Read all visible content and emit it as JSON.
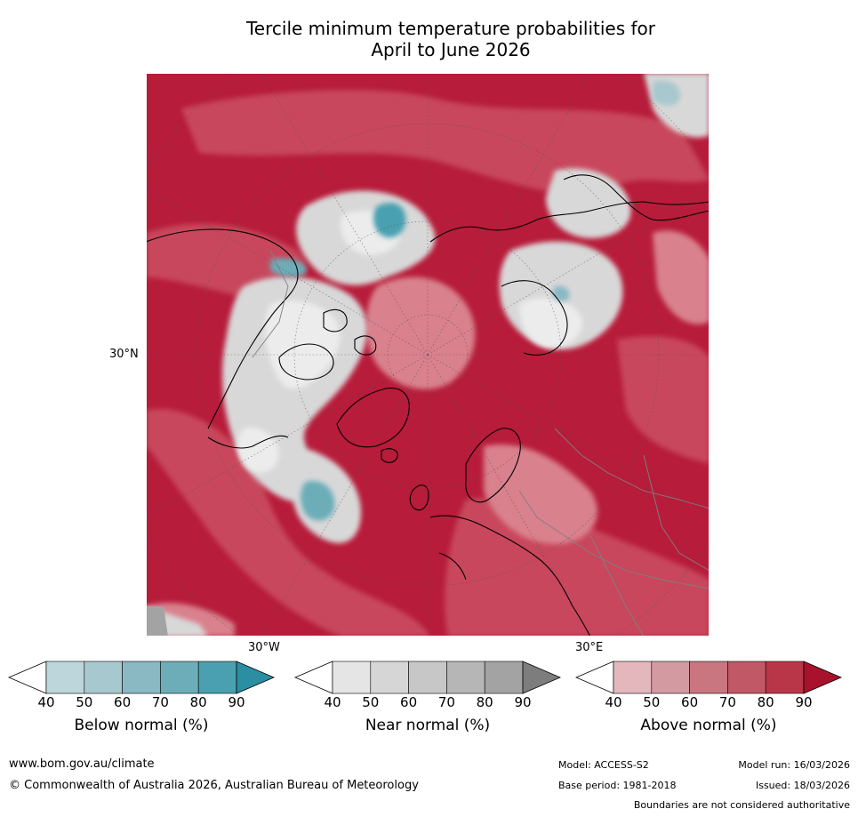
{
  "title": {
    "line1": "Tercile minimum temperature probabilities for",
    "line2": "April to June 2026"
  },
  "map": {
    "projection": "north polar stereographic",
    "lat_labels": [
      "30°N"
    ],
    "lon_labels": [
      "30°W",
      "30°E"
    ]
  },
  "colorbars": [
    {
      "label": "Below normal (%)",
      "ticks": [
        "40",
        "50",
        "60",
        "70",
        "80",
        "90"
      ],
      "colors": [
        "#bdd6dc",
        "#a7c8ce",
        "#8ab8c3",
        "#6cadb8",
        "#4aa0b1",
        "#2b8ea2"
      ]
    },
    {
      "label": "Near normal (%)",
      "ticks": [
        "40",
        "50",
        "60",
        "70",
        "80",
        "90"
      ],
      "colors": [
        "#e5e5e5",
        "#d6d6d6",
        "#c7c7c7",
        "#b6b6b6",
        "#a3a3a3",
        "#7d7d7d"
      ]
    },
    {
      "label": "Above normal (%)",
      "ticks": [
        "40",
        "50",
        "60",
        "70",
        "80",
        "90"
      ],
      "colors": [
        "#e3b7bc",
        "#d49aa2",
        "#c97680",
        "#c05866",
        "#b93649",
        "#a8122c"
      ]
    }
  ],
  "palette": {
    "above_strong": "#b71c3a",
    "above_mid": "#c8475c",
    "above_light": "#d9818d",
    "near": "#d8d8d8",
    "below": "#4aa0b1",
    "coast": "#000000",
    "border": "#808080"
  },
  "footer": {
    "url": "www.bom.gov.au/climate",
    "copyright": "© Commonwealth of Australia 2026, Australian Bureau of Meteorology",
    "model": "Model: ACCESS-S2",
    "base_period": "Base period: 1981-2018",
    "model_run": "Model run: 16/03/2026",
    "issued": "Issued: 18/03/2026",
    "disclaimer": "Boundaries are not considered authoritative"
  }
}
